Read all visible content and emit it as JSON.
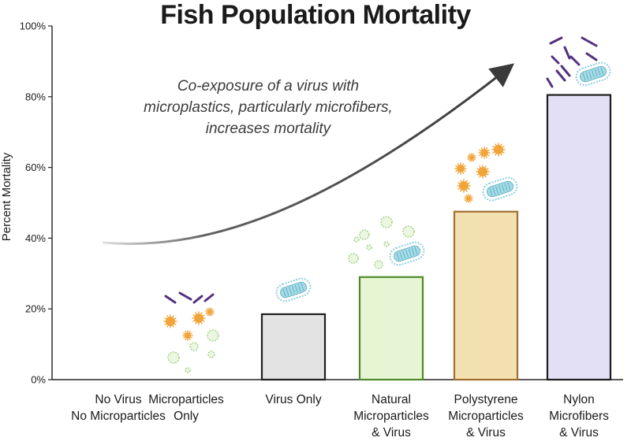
{
  "chart_data": {
    "type": "bar",
    "title": "Fish Population Mortality",
    "ylabel": "Percent Mortality",
    "ylim": [
      0,
      100
    ],
    "yticks": [
      "0%",
      "20%",
      "40%",
      "60%",
      "80%",
      "100%"
    ],
    "categories": [
      [
        "No Virus",
        "No Microparticles"
      ],
      [
        "Microparticles",
        "Only"
      ],
      [
        "Virus Only"
      ],
      [
        "Natural",
        "Microparticles",
        "& Virus"
      ],
      [
        "Polystyrene",
        "Microparticles",
        "& Virus"
      ],
      [
        "Nylon",
        "Microfibers",
        "& Virus"
      ]
    ],
    "values": [
      0,
      0,
      18.5,
      29,
      47.5,
      80.5
    ],
    "bar_colors": [
      "#ffffff",
      "#ffffff",
      "#e3e3e3",
      "#e6f5d3",
      "#f3e0b1",
      "#e3e0f5"
    ],
    "bar_edges": [
      "#000000",
      "#000000",
      "#1f1f1f",
      "#4f8a2a",
      "#a06f2d",
      "#1d1d1d"
    ],
    "annotation": "Co-exposure of a virus with microplastics, particularly microfibers, increases mortality",
    "grid": false
  },
  "colors": {
    "orange_particle": "#f0a53a",
    "green_particle": "#c7e6b0",
    "blue_virus": "#a6dbe6",
    "purple_fiber": "#53317f",
    "arrow": "#3a3a3a"
  }
}
